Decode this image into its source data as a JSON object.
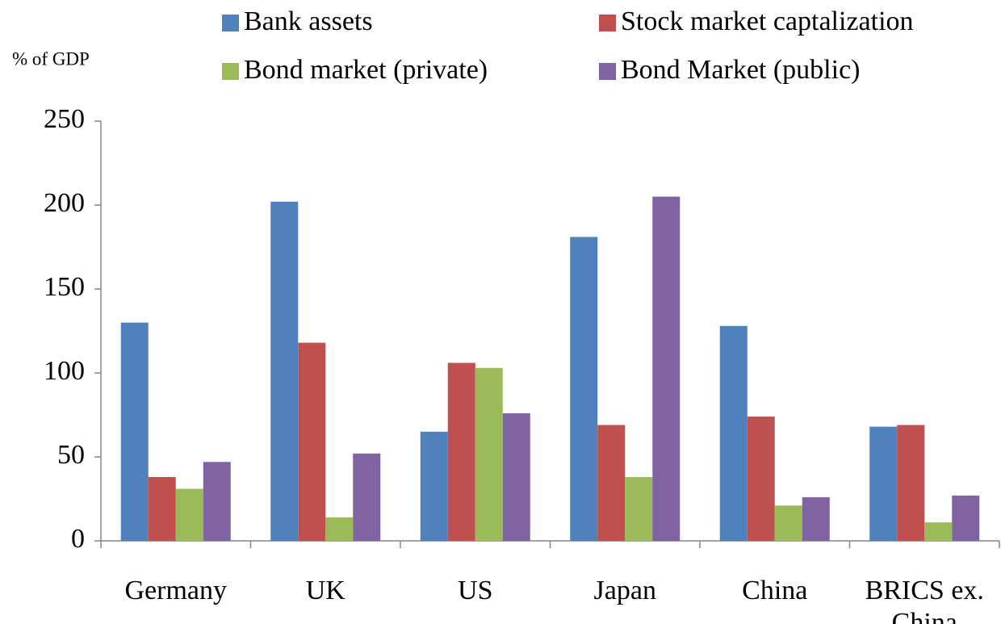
{
  "chart_data": {
    "type": "bar",
    "y_label": "% of GDP",
    "categories": [
      "Germany",
      "UK",
      "US",
      "Japan",
      "China",
      "BRICS ex. China"
    ],
    "series": [
      {
        "name": "Bank assets",
        "color": "#4f81bd",
        "values": [
          130,
          202,
          65,
          181,
          128,
          68
        ]
      },
      {
        "name": "Stock market captalization",
        "color": "#c0504d",
        "values": [
          38,
          118,
          106,
          69,
          74,
          69
        ]
      },
      {
        "name": "Bond market (private)",
        "color": "#9bbb59",
        "values": [
          31,
          14,
          103,
          38,
          21,
          11
        ]
      },
      {
        "name": "Bond Market (public)",
        "color": "#8064a2",
        "values": [
          47,
          52,
          76,
          205,
          26,
          27
        ]
      }
    ],
    "ylim": [
      0,
      250
    ],
    "yticks": [
      0,
      50,
      100,
      150,
      200,
      250
    ],
    "grid": false,
    "legend": "top"
  }
}
